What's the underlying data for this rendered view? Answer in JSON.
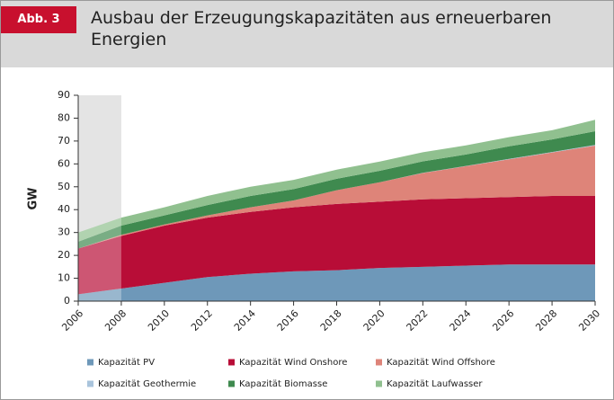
{
  "chart_data": {
    "type": "stacked_area",
    "figure_label": "Abb. 3",
    "title": "Ausbau der Erzeugungskapazitäten aus erneuerbaren Energien",
    "y_label": "GW",
    "x": [
      2006,
      2008,
      2010,
      2012,
      2014,
      2016,
      2018,
      2020,
      2022,
      2024,
      2026,
      2028,
      2030
    ],
    "xlim": [
      2006,
      2030
    ],
    "xticks": [
      2006,
      2008,
      2010,
      2012,
      2014,
      2016,
      2018,
      2020,
      2022,
      2024,
      2026,
      2028,
      2030
    ],
    "ylim": [
      0,
      90
    ],
    "yticks": [
      0,
      10,
      20,
      30,
      40,
      50,
      60,
      70,
      80,
      90
    ],
    "shaded_x": [
      2006,
      2008
    ],
    "series": [
      {
        "name": "Kapazität PV",
        "color": "#6e98b9",
        "values": [
          3,
          5.5,
          8,
          10.5,
          12,
          13,
          13.5,
          14.5,
          15,
          15.5,
          16,
          16,
          16
        ]
      },
      {
        "name": "Kapazität Wind Onshore",
        "color": "#b80d37",
        "values": [
          20,
          23,
          25,
          26,
          27,
          28,
          29,
          29,
          29.5,
          29.5,
          29.5,
          30,
          30
        ]
      },
      {
        "name": "Kapazität Wind Offshore",
        "color": "#de8479",
        "values": [
          0,
          0.5,
          0.5,
          1,
          2,
          3,
          6,
          8.5,
          11.5,
          14,
          16.5,
          19,
          22
        ]
      },
      {
        "name": "Kapazität Geothermie",
        "color": "#a9c4dc",
        "values": [
          0,
          0,
          0,
          0,
          0,
          0,
          0,
          0,
          0.1,
          0.1,
          0.2,
          0.2,
          0.3
        ]
      },
      {
        "name": "Kapazität Biomasse",
        "color": "#3f8a4f",
        "values": [
          3,
          4,
          4,
          4.5,
          5,
          5,
          5,
          5,
          5,
          5,
          5.5,
          5.5,
          6
        ]
      },
      {
        "name": "Kapazität Laufwasser",
        "color": "#90c08f",
        "values": [
          4,
          3.5,
          3.5,
          4,
          4,
          4,
          4,
          4,
          4,
          4,
          4,
          4,
          5
        ]
      }
    ]
  }
}
